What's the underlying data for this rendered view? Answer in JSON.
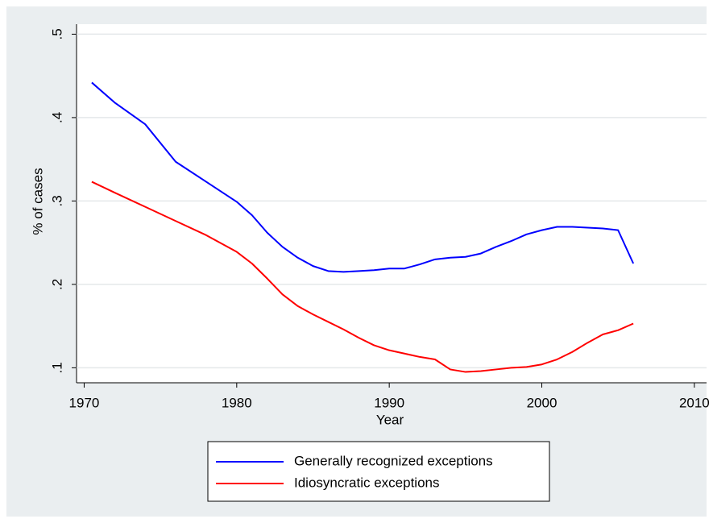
{
  "chart_data": {
    "type": "line",
    "x_label": "Year",
    "y_label": "% of cases",
    "x": [
      1970.5,
      1972,
      1974,
      1976,
      1978,
      1980,
      1981,
      1982,
      1983,
      1984,
      1985,
      1986,
      1987,
      1988,
      1989,
      1990,
      1991,
      1992,
      1993,
      1994,
      1995,
      1996,
      1997,
      1998,
      1999,
      2000,
      2001,
      2002,
      2003,
      2004,
      2005,
      2006
    ],
    "series": [
      {
        "name": "Generally recognized exceptions",
        "color": "#0000ff",
        "values": [
          0.442,
          0.418,
          0.392,
          0.347,
          0.323,
          0.299,
          0.283,
          0.262,
          0.245,
          0.232,
          0.222,
          0.216,
          0.215,
          0.216,
          0.217,
          0.219,
          0.219,
          0.224,
          0.23,
          0.232,
          0.233,
          0.237,
          0.245,
          0.252,
          0.26,
          0.265,
          0.269,
          0.269,
          0.268,
          0.267,
          0.265,
          0.225
        ]
      },
      {
        "name": "Idiosyncratic exceptions",
        "color": "#ff0000",
        "values": [
          0.323,
          0.31,
          0.293,
          0.276,
          0.259,
          0.239,
          0.225,
          0.207,
          0.188,
          0.174,
          0.164,
          0.155,
          0.146,
          0.136,
          0.127,
          0.121,
          0.117,
          0.113,
          0.11,
          0.098,
          0.095,
          0.096,
          0.098,
          0.1,
          0.101,
          0.104,
          0.11,
          0.119,
          0.13,
          0.14,
          0.145,
          0.153
        ]
      }
    ],
    "xlim": [
      1969.5,
      2010.8
    ],
    "xticks": [
      1970,
      1980,
      1990,
      2000,
      2010
    ],
    "ylim": [
      0.082,
      0.512
    ],
    "yticks": [
      {
        "value": 0.1,
        "label": ".1"
      },
      {
        "value": 0.2,
        "label": ".2"
      },
      {
        "value": 0.3,
        "label": ".3"
      },
      {
        "value": 0.4,
        "label": ".4"
      },
      {
        "value": 0.5,
        "label": ".5"
      }
    ],
    "grid": true,
    "legend": "bottom"
  }
}
